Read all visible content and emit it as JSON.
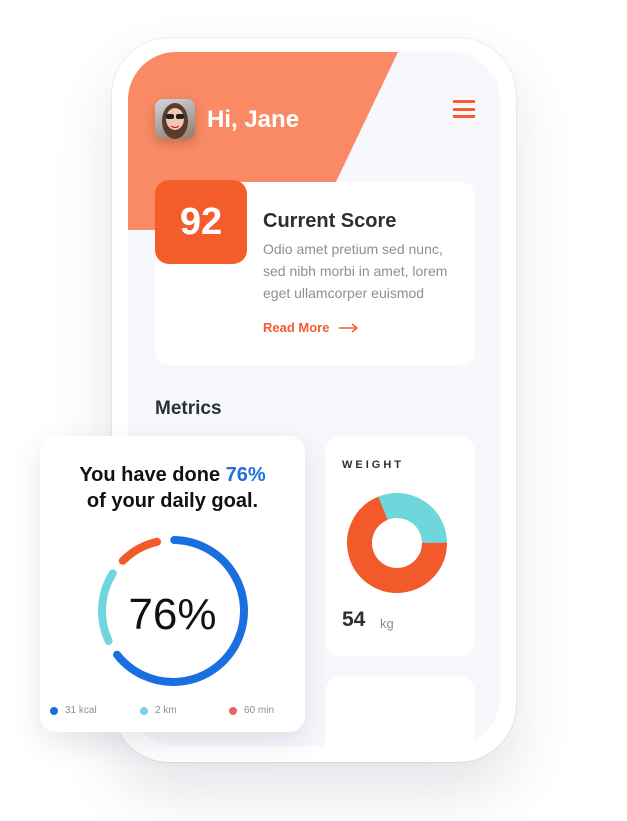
{
  "header": {
    "greeting": "Hi, Jane",
    "menu_icon": "hamburger-menu-icon"
  },
  "score": {
    "value": "92",
    "title": "Current Score",
    "description": "Odio amet pretium sed nunc, sed nibh morbi in amet, lorem eget ullamcorper euismod",
    "link": "Read More"
  },
  "metrics": {
    "title": "Metrics"
  },
  "goal": {
    "text_before": "You have done ",
    "highlight": "76%",
    "text_after": "of your daily goal.",
    "percent_label": "76%",
    "progress_percent": 76,
    "legend": [
      {
        "label": "31 kcal",
        "color": "#1a6fe0"
      },
      {
        "label": "2 km",
        "color": "#6fd6e0"
      },
      {
        "label": "60 min",
        "color": "#ea6560"
      }
    ]
  },
  "weight": {
    "label": "WEIGHT",
    "value": "54",
    "unit": "kg",
    "segments": [
      {
        "color": "#6dd7db",
        "share": 0.31
      },
      {
        "color": "#f25a2c",
        "share": 0.69
      }
    ]
  },
  "colors": {
    "accent": "#f45d2b",
    "header_orange": "#f98a65",
    "blue": "#1f6fe0",
    "cyan": "#6fd6e0"
  }
}
